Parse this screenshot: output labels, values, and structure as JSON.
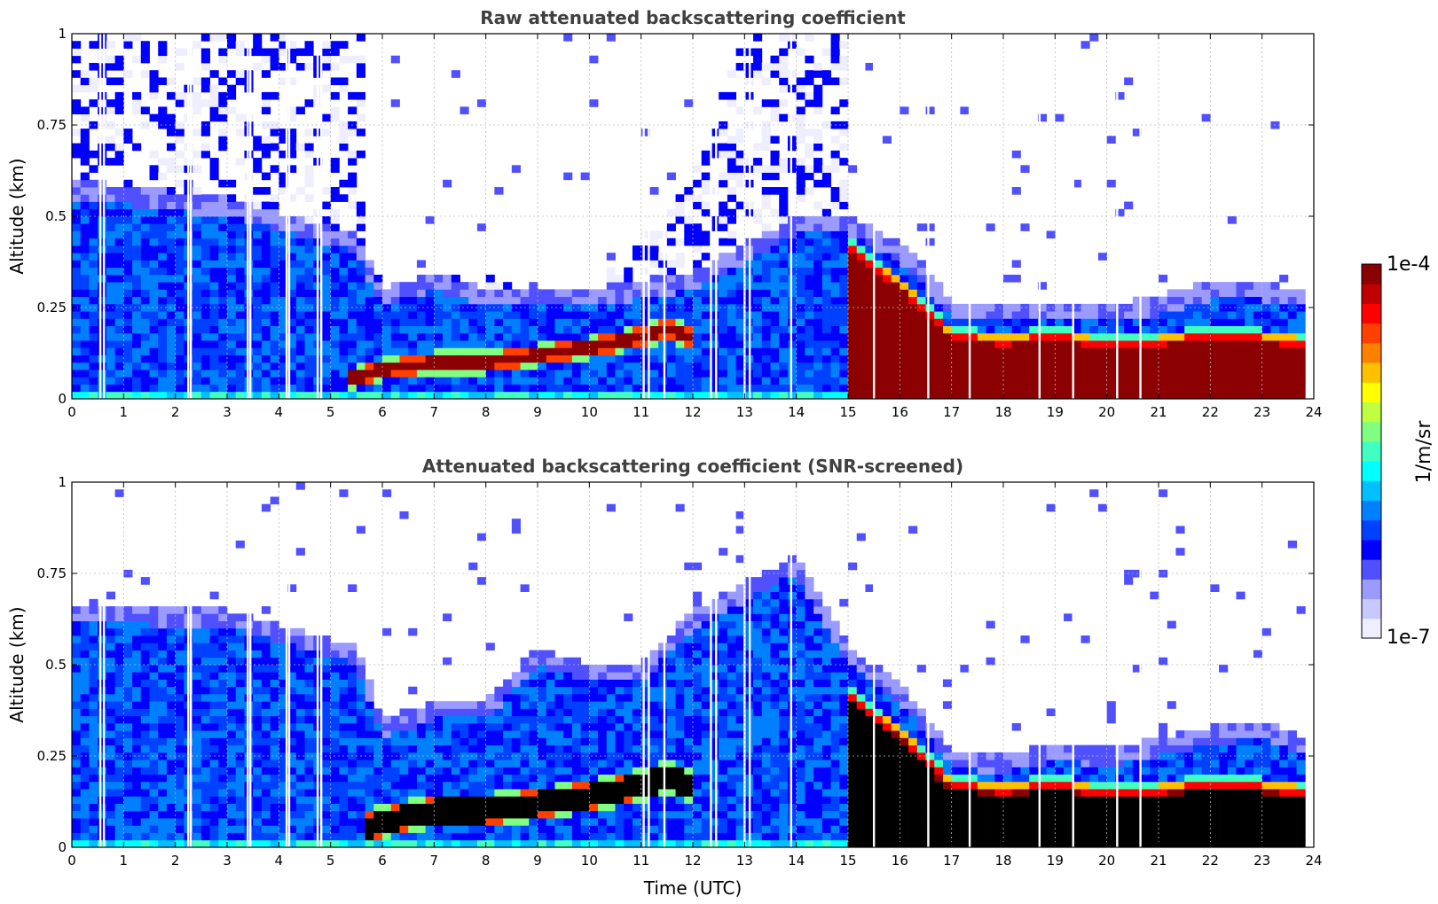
{
  "chart_data": [
    {
      "type": "heatmap",
      "title": "Raw attenuated backscattering coefficient",
      "xlabel": "",
      "ylabel": "Altitude (km)",
      "xlim": [
        0,
        24
      ],
      "ylim": [
        0,
        1
      ],
      "xticks": [
        "0",
        "1",
        "2",
        "3",
        "4",
        "5",
        "6",
        "7",
        "8",
        "9",
        "10",
        "11",
        "12",
        "13",
        "14",
        "15",
        "16",
        "17",
        "18",
        "19",
        "20",
        "21",
        "22",
        "23",
        "24"
      ],
      "yticks": [
        "0",
        "0.25",
        "0.5",
        "0.75",
        "1"
      ],
      "grid": true,
      "colorscale": "jet",
      "color_scale": "log",
      "color_range": [
        "1e-7",
        "1e-4"
      ],
      "layers": {
        "noise_top_km": [
          [
            0,
            1.0
          ],
          [
            5.6,
            1.0
          ],
          [
            5.7,
            0.35
          ],
          [
            6.5,
            0.3
          ],
          [
            7.5,
            0.35
          ],
          [
            9,
            0.3
          ],
          [
            10,
            0.3
          ],
          [
            11,
            0.45
          ],
          [
            12,
            0.6
          ],
          [
            13,
            1.0
          ],
          [
            15,
            1.0
          ],
          [
            15.05,
            0.24
          ],
          [
            17,
            0.2
          ],
          [
            24,
            0.22
          ]
        ],
        "aerosol_top_km": [
          [
            0,
            0.55
          ],
          [
            3,
            0.5
          ],
          [
            5.5,
            0.4
          ],
          [
            6,
            0.25
          ],
          [
            7,
            0.3
          ],
          [
            8,
            0.25
          ],
          [
            10,
            0.25
          ],
          [
            12,
            0.3
          ],
          [
            14,
            0.45
          ],
          [
            15,
            0.45
          ],
          [
            16,
            0.38
          ],
          [
            17,
            0.22
          ],
          [
            18,
            0.21
          ],
          [
            19,
            0.22
          ],
          [
            20,
            0.21
          ],
          [
            21,
            0.23
          ],
          [
            22,
            0.27
          ],
          [
            23,
            0.27
          ],
          [
            23.75,
            0.25
          ]
        ],
        "cloud_layer_center_km": [
          [
            5.3,
            0.05
          ],
          [
            6,
            0.08
          ],
          [
            7,
            0.1
          ],
          [
            8,
            0.1
          ],
          [
            9,
            0.12
          ],
          [
            10,
            0.14
          ],
          [
            11,
            0.17
          ],
          [
            11.5,
            0.19
          ],
          [
            12,
            0.17
          ]
        ],
        "cloud_layer_thickness_km": 0.06,
        "fog_bottom_top_km": [
          [
            15.0,
            0.45
          ],
          [
            15.5,
            0.38
          ],
          [
            16,
            0.34
          ],
          [
            16.5,
            0.26
          ],
          [
            17,
            0.2
          ],
          [
            18,
            0.18
          ],
          [
            19,
            0.2
          ],
          [
            20,
            0.17
          ],
          [
            21,
            0.18
          ],
          [
            22,
            0.2
          ],
          [
            23,
            0.19
          ],
          [
            23.75,
            0.18
          ]
        ],
        "missing_profiles_h": [
          0.55,
          0.62,
          2.25,
          2.3,
          3.4,
          3.45,
          4.15,
          4.2,
          4.75,
          4.82,
          11.05,
          11.15,
          11.45,
          12.35,
          12.45,
          13.0,
          13.1,
          13.9,
          15.5,
          16.55,
          17.35,
          18.7,
          19.35,
          20.2,
          20.65
        ]
      }
    },
    {
      "type": "heatmap",
      "title": "Attenuated backscattering coefficient (SNR-screened)",
      "xlabel": "Time (UTC)",
      "ylabel": "Altitude (km)",
      "xlim": [
        0,
        24
      ],
      "ylim": [
        0,
        1
      ],
      "xticks": [
        "0",
        "1",
        "2",
        "3",
        "4",
        "5",
        "6",
        "7",
        "8",
        "9",
        "10",
        "11",
        "12",
        "13",
        "14",
        "15",
        "16",
        "17",
        "18",
        "19",
        "20",
        "21",
        "22",
        "23",
        "24"
      ],
      "yticks": [
        "0",
        "0.25",
        "0.5",
        "0.75",
        "1"
      ],
      "grid": true,
      "colorscale": "jet",
      "color_scale": "log",
      "color_range": [
        "1e-7",
        "1e-4"
      ],
      "saturated_color": "#000000",
      "layers": {
        "aerosol_top_km": [
          [
            0,
            0.62
          ],
          [
            3,
            0.6
          ],
          [
            5.5,
            0.5
          ],
          [
            6,
            0.3
          ],
          [
            7,
            0.35
          ],
          [
            8,
            0.35
          ],
          [
            9,
            0.5
          ],
          [
            10,
            0.45
          ],
          [
            11,
            0.45
          ],
          [
            12,
            0.6
          ],
          [
            14,
            0.75
          ],
          [
            15,
            0.5
          ],
          [
            16,
            0.4
          ],
          [
            17,
            0.22
          ],
          [
            18,
            0.2
          ],
          [
            19,
            0.24
          ],
          [
            20,
            0.22
          ],
          [
            21,
            0.25
          ],
          [
            22,
            0.28
          ],
          [
            23,
            0.3
          ],
          [
            23.75,
            0.25
          ]
        ],
        "cloud_layer_center_km": [
          [
            5.6,
            0.05
          ],
          [
            6,
            0.07
          ],
          [
            7,
            0.1
          ],
          [
            8,
            0.1
          ],
          [
            9,
            0.12
          ],
          [
            10,
            0.14
          ],
          [
            11,
            0.17
          ],
          [
            11.5,
            0.19
          ],
          [
            12,
            0.17
          ]
        ],
        "cloud_layer_thickness_km": 0.09,
        "fog_bottom_top_km": [
          [
            15.0,
            0.45
          ],
          [
            15.5,
            0.38
          ],
          [
            16,
            0.34
          ],
          [
            16.5,
            0.26
          ],
          [
            17,
            0.2
          ],
          [
            18,
            0.18
          ],
          [
            19,
            0.2
          ],
          [
            20,
            0.17
          ],
          [
            21,
            0.18
          ],
          [
            22,
            0.2
          ],
          [
            23,
            0.19
          ],
          [
            23.75,
            0.18
          ]
        ],
        "missing_profiles_h": [
          0.55,
          0.62,
          2.25,
          2.3,
          3.4,
          3.45,
          4.15,
          4.2,
          4.75,
          4.82,
          11.05,
          11.15,
          11.45,
          12.35,
          12.45,
          13.0,
          13.1,
          13.9,
          15.5,
          16.55,
          17.35,
          18.7,
          19.35,
          20.2,
          20.65
        ]
      }
    }
  ],
  "colorbar": {
    "max_label": "1e-4",
    "min_label": "1e-7",
    "units_label": "1/m/sr",
    "colors": [
      "#eeeeff",
      "#c8c8ff",
      "#9a9aff",
      "#5050ff",
      "#0000ff",
      "#0040ff",
      "#0080ff",
      "#00c0ff",
      "#00ffff",
      "#40ffc0",
      "#80ff80",
      "#c0ff40",
      "#ffff00",
      "#ffc000",
      "#ff8000",
      "#ff4000",
      "#ff0000",
      "#c00000",
      "#8b0000"
    ]
  }
}
